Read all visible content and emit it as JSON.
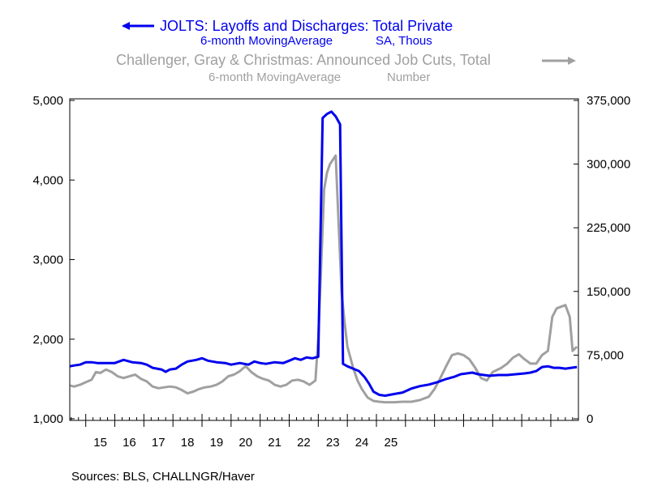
{
  "chart_data": {
    "type": "line",
    "title": "",
    "series": [
      {
        "name": "JOLTS: Layoffs and Discharges: Total Private",
        "subtitle_left": "6-month MovingAverage",
        "subtitle_right": "SA, Thous",
        "axis": "left",
        "color": "#0000ee",
        "legend_arrow": "left",
        "points": [
          [
            2014.46,
            1660
          ],
          [
            2014.6,
            1670
          ],
          [
            2014.8,
            1680
          ],
          [
            2015.0,
            1710
          ],
          [
            2015.2,
            1710
          ],
          [
            2015.4,
            1700
          ],
          [
            2015.6,
            1700
          ],
          [
            2015.8,
            1700
          ],
          [
            2016.0,
            1700
          ],
          [
            2016.3,
            1740
          ],
          [
            2016.6,
            1710
          ],
          [
            2016.9,
            1700
          ],
          [
            2017.1,
            1680
          ],
          [
            2017.3,
            1640
          ],
          [
            2017.6,
            1620
          ],
          [
            2017.75,
            1590
          ],
          [
            2017.9,
            1620
          ],
          [
            2018.1,
            1630
          ],
          [
            2018.3,
            1680
          ],
          [
            2018.5,
            1720
          ],
          [
            2018.8,
            1740
          ],
          [
            2019.0,
            1760
          ],
          [
            2019.2,
            1730
          ],
          [
            2019.5,
            1710
          ],
          [
            2019.8,
            1700
          ],
          [
            2020.0,
            1680
          ],
          [
            2020.3,
            1700
          ],
          [
            2020.6,
            1680
          ],
          [
            2020.8,
            1720
          ],
          [
            2021.0,
            1700
          ],
          [
            2021.2,
            1690
          ],
          [
            2021.5,
            1710
          ],
          [
            2021.8,
            1700
          ],
          [
            2022.0,
            1730
          ],
          [
            2022.2,
            1760
          ],
          [
            2022.4,
            1740
          ],
          [
            2022.6,
            1770
          ],
          [
            2022.8,
            1760
          ],
          [
            2023.0,
            1780
          ],
          [
            2023.15,
            4780
          ],
          [
            2023.3,
            4830
          ],
          [
            2023.45,
            4860
          ],
          [
            2023.6,
            4800
          ],
          [
            2023.75,
            4700
          ],
          [
            2023.85,
            1690
          ],
          [
            2024.0,
            1660
          ],
          [
            2024.2,
            1630
          ],
          [
            2024.4,
            1600
          ],
          [
            2024.6,
            1520
          ],
          [
            2024.75,
            1440
          ],
          [
            2024.9,
            1340
          ],
          [
            2025.1,
            1300
          ],
          [
            2025.3,
            1290
          ],
          [
            2025.6,
            1310
          ],
          [
            2025.9,
            1330
          ],
          [
            2026.2,
            1380
          ],
          [
            2026.5,
            1410
          ],
          [
            2026.8,
            1430
          ],
          [
            2027.1,
            1460
          ],
          [
            2027.4,
            1500
          ],
          [
            2027.7,
            1530
          ],
          [
            2027.9,
            1560
          ],
          [
            2028.1,
            1570
          ],
          [
            2028.3,
            1580
          ],
          [
            2028.5,
            1560
          ],
          [
            2028.7,
            1550
          ],
          [
            2028.9,
            1540
          ],
          [
            2029.2,
            1550
          ],
          [
            2029.5,
            1550
          ],
          [
            2029.8,
            1560
          ],
          [
            2030.1,
            1570
          ],
          [
            2030.3,
            1580
          ],
          [
            2030.5,
            1600
          ],
          [
            2030.7,
            1650
          ],
          [
            2030.9,
            1660
          ],
          [
            2031.1,
            1640
          ],
          [
            2031.3,
            1640
          ],
          [
            2031.5,
            1630
          ],
          [
            2031.7,
            1640
          ],
          [
            2031.9,
            1650
          ]
        ]
      },
      {
        "name": "Challenger, Gray & Christmas: Announced Job Cuts, Total",
        "subtitle_left": "6-month MovingAverage",
        "subtitle_right": "Number",
        "axis": "right",
        "color": "#a0a0a0",
        "legend_arrow": "right",
        "points": [
          [
            2014.46,
            39000
          ],
          [
            2014.6,
            38000
          ],
          [
            2014.8,
            40000
          ],
          [
            2015.0,
            43000
          ],
          [
            2015.2,
            46000
          ],
          [
            2015.35,
            55000
          ],
          [
            2015.5,
            54000
          ],
          [
            2015.7,
            58000
          ],
          [
            2015.9,
            55000
          ],
          [
            2016.1,
            50000
          ],
          [
            2016.3,
            48000
          ],
          [
            2016.5,
            50000
          ],
          [
            2016.7,
            52000
          ],
          [
            2016.9,
            47000
          ],
          [
            2017.1,
            44000
          ],
          [
            2017.3,
            38000
          ],
          [
            2017.5,
            36000
          ],
          [
            2017.7,
            37000
          ],
          [
            2017.9,
            38000
          ],
          [
            2018.1,
            37000
          ],
          [
            2018.3,
            34000
          ],
          [
            2018.5,
            30000
          ],
          [
            2018.7,
            32000
          ],
          [
            2018.9,
            35000
          ],
          [
            2019.1,
            37000
          ],
          [
            2019.3,
            38000
          ],
          [
            2019.5,
            40000
          ],
          [
            2019.7,
            44000
          ],
          [
            2019.9,
            50000
          ],
          [
            2020.1,
            52000
          ],
          [
            2020.3,
            56000
          ],
          [
            2020.5,
            62000
          ],
          [
            2020.7,
            55000
          ],
          [
            2020.9,
            50000
          ],
          [
            2021.1,
            47000
          ],
          [
            2021.3,
            45000
          ],
          [
            2021.5,
            40000
          ],
          [
            2021.7,
            38000
          ],
          [
            2021.9,
            40000
          ],
          [
            2022.1,
            45000
          ],
          [
            2022.3,
            46000
          ],
          [
            2022.5,
            44000
          ],
          [
            2022.7,
            40000
          ],
          [
            2022.9,
            45000
          ],
          [
            2023.0,
            95000
          ],
          [
            2023.1,
            180000
          ],
          [
            2023.2,
            270000
          ],
          [
            2023.3,
            290000
          ],
          [
            2023.4,
            300000
          ],
          [
            2023.5,
            305000
          ],
          [
            2023.6,
            310000
          ],
          [
            2023.7,
            230000
          ],
          [
            2023.8,
            150000
          ],
          [
            2023.9,
            115000
          ],
          [
            2024.0,
            85000
          ],
          [
            2024.2,
            60000
          ],
          [
            2024.35,
            45000
          ],
          [
            2024.5,
            35000
          ],
          [
            2024.7,
            25000
          ],
          [
            2024.9,
            21000
          ],
          [
            2025.1,
            20000
          ],
          [
            2025.3,
            19500
          ],
          [
            2025.6,
            19500
          ],
          [
            2025.9,
            20000
          ],
          [
            2026.2,
            20000
          ],
          [
            2026.5,
            22000
          ],
          [
            2026.8,
            26000
          ],
          [
            2027.0,
            35000
          ],
          [
            2027.2,
            48000
          ],
          [
            2027.4,
            62000
          ],
          [
            2027.6,
            75000
          ],
          [
            2027.8,
            77000
          ],
          [
            2028.0,
            75000
          ],
          [
            2028.2,
            70000
          ],
          [
            2028.4,
            60000
          ],
          [
            2028.6,
            48000
          ],
          [
            2028.8,
            45000
          ],
          [
            2029.0,
            55000
          ],
          [
            2029.3,
            60000
          ],
          [
            2029.5,
            65000
          ],
          [
            2029.7,
            72000
          ],
          [
            2029.9,
            76000
          ],
          [
            2030.1,
            70000
          ],
          [
            2030.3,
            65000
          ],
          [
            2030.5,
            65000
          ],
          [
            2030.7,
            75000
          ],
          [
            2030.9,
            80000
          ],
          [
            2031.05,
            120000
          ],
          [
            2031.2,
            130000
          ],
          [
            2031.35,
            132000
          ],
          [
            2031.5,
            134000
          ],
          [
            2031.65,
            120000
          ],
          [
            2031.75,
            80000
          ],
          [
            2031.9,
            85000
          ]
        ]
      }
    ],
    "left_axis": {
      "min": 1000,
      "max": 5000,
      "ticks": [
        1000,
        2000,
        3000,
        4000,
        5000
      ],
      "tick_labels": [
        "1,000",
        "2,000",
        "3,000",
        "4,000",
        "5,000"
      ]
    },
    "right_axis": {
      "min": 0,
      "max": 375000,
      "ticks": [
        0,
        75000,
        150000,
        225000,
        300000,
        375000
      ],
      "tick_labels": [
        "0",
        "75,000",
        "150,000",
        "225,000",
        "300,000",
        "375,000"
      ]
    },
    "x_axis": {
      "min": 2014.45,
      "max": 2031.95,
      "tick_labels": [
        "15",
        "16",
        "17",
        "18",
        "19",
        "20",
        "21",
        "22",
        "23",
        "24",
        "25"
      ],
      "tick_positions": [
        2015,
        2016,
        2017,
        2018,
        2019,
        2020,
        2021,
        2022,
        2023,
        2024,
        2025
      ]
    },
    "source": "Sources:  BLS, CHALLNGR/Haver"
  }
}
